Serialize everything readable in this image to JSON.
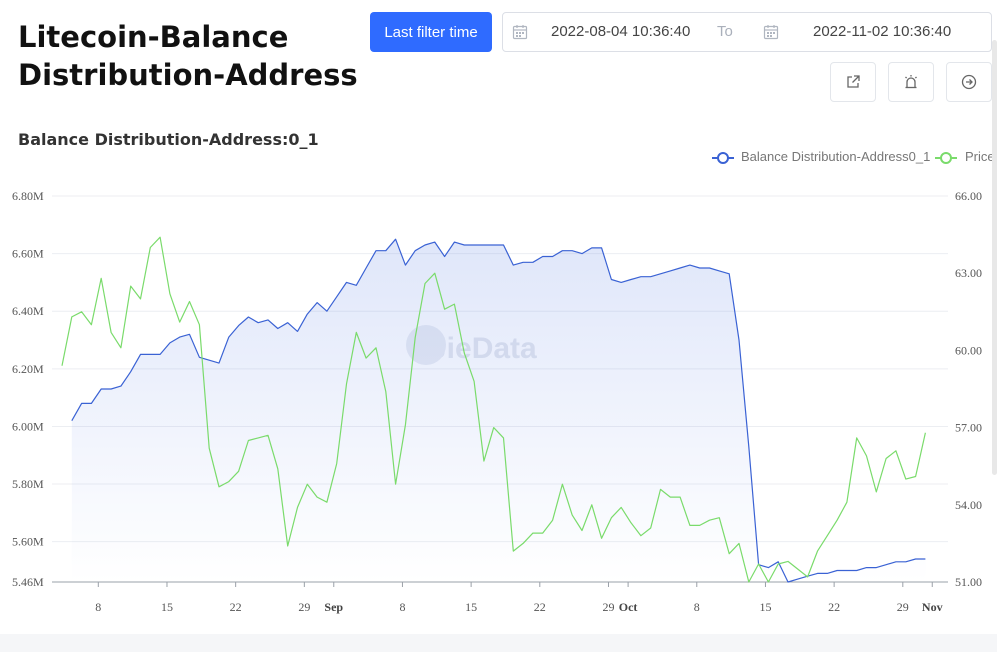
{
  "page": {
    "title": "Litecoin-Balance Distribution-Address",
    "subtitle": "Balance Distribution-Address:0_1",
    "watermark": "JieData"
  },
  "toolbar": {
    "filter_label": "Last filter time",
    "start": "2022-08-04 10:36:40",
    "to_label": "To",
    "end": "2022-11-02 10:36:40",
    "icons": [
      "share-icon",
      "alarm-icon",
      "arrow-right-circle-icon"
    ]
  },
  "chart_data": {
    "type": "line",
    "legend_position": "top-right",
    "grid": true,
    "x_ticks": [
      "8",
      "15",
      "22",
      "29",
      "Sep",
      "8",
      "15",
      "22",
      "29",
      "Oct",
      "8",
      "15",
      "22",
      "29",
      "Nov"
    ],
    "y_left": {
      "ticks": [
        "6.80M",
        "6.60M",
        "6.40M",
        "6.20M",
        "6.00M",
        "5.80M",
        "5.60M",
        "5.46M"
      ],
      "range": [
        5.46,
        6.8
      ],
      "unit": "M"
    },
    "y_right": {
      "ticks": [
        "66.00",
        "63.00",
        "60.00",
        "57.00",
        "54.00",
        "51.00"
      ],
      "range": [
        51,
        66
      ]
    },
    "x_start_date": "2022-08-04",
    "series": [
      {
        "name": "Balance Distribution-Address0_1",
        "color": "#3a62d4",
        "axis": "left",
        "x_start": 0,
        "values": [
          6.02,
          6.08,
          6.08,
          6.13,
          6.13,
          6.14,
          6.19,
          6.25,
          6.25,
          6.25,
          6.29,
          6.31,
          6.32,
          6.24,
          6.23,
          6.22,
          6.31,
          6.35,
          6.38,
          6.36,
          6.37,
          6.34,
          6.36,
          6.33,
          6.39,
          6.43,
          6.4,
          6.45,
          6.5,
          6.49,
          6.55,
          6.61,
          6.61,
          6.65,
          6.56,
          6.61,
          6.63,
          6.64,
          6.59,
          6.64,
          6.63,
          6.63,
          6.63,
          6.63,
          6.63,
          6.56,
          6.57,
          6.57,
          6.59,
          6.59,
          6.61,
          6.61,
          6.6,
          6.62,
          6.62,
          6.51,
          6.5,
          6.51,
          6.52,
          6.52,
          6.53,
          6.54,
          6.55,
          6.56,
          6.55,
          6.55,
          6.54,
          6.53,
          6.3,
          5.93,
          5.52,
          5.51,
          5.53,
          5.46,
          5.47,
          5.48,
          5.49,
          5.49,
          5.5,
          5.5,
          5.5,
          5.51,
          5.51,
          5.52,
          5.53,
          5.53,
          5.54,
          5.54
        ]
      },
      {
        "name": "Price",
        "color": "#7adb6b",
        "axis": "right",
        "x_start": -1,
        "values": [
          59.4,
          61.3,
          61.5,
          61.0,
          62.8,
          60.7,
          60.1,
          62.5,
          62.0,
          64.0,
          64.4,
          62.2,
          61.1,
          61.9,
          61.0,
          56.2,
          54.7,
          54.9,
          55.3,
          56.5,
          56.6,
          56.7,
          55.4,
          52.4,
          53.9,
          54.8,
          54.3,
          54.1,
          55.6,
          58.7,
          60.7,
          59.7,
          60.1,
          58.4,
          54.8,
          57.1,
          60.5,
          62.6,
          63.0,
          61.6,
          61.8,
          59.9,
          58.8,
          55.7,
          57.0,
          56.6,
          52.2,
          52.5,
          52.9,
          52.9,
          53.4,
          54.8,
          53.6,
          53.0,
          54.0,
          52.7,
          53.5,
          53.9,
          53.3,
          52.8,
          53.1,
          54.6,
          54.3,
          54.3,
          53.2,
          53.2,
          53.4,
          53.5,
          52.1,
          52.5,
          51.0,
          51.7,
          51.0,
          51.7,
          51.8,
          51.5,
          51.2,
          52.2,
          52.8,
          53.4,
          54.1,
          56.6,
          55.9,
          54.5,
          55.8,
          56.1,
          55.0,
          55.1,
          56.8
        ]
      }
    ]
  }
}
